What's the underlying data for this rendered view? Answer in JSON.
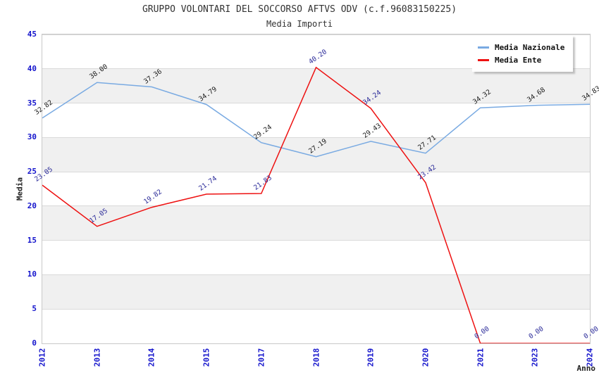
{
  "title": "GRUPPO VOLONTARI DEL SOCCORSO AFTVS ODV (c.f.96083150225)",
  "subtitle": "Media Importi",
  "axes": {
    "x_label": "Anno",
    "y_label": "Media",
    "y_ticks": [
      0,
      5,
      10,
      15,
      20,
      25,
      30,
      35,
      40,
      45
    ]
  },
  "colors": {
    "tick_text": "#1414cc",
    "band_gray": "#f0f0f0",
    "gridline": "#dadada",
    "plot_border": "#c9c9c9",
    "title_text": "#333333"
  },
  "chart_data": {
    "type": "line",
    "title": "GRUPPO VOLONTARI DEL SOCCORSO AFTVS ODV (c.f.96083150225)",
    "subtitle": "Media Importi",
    "xlabel": "Anno",
    "ylabel": "Media",
    "ylim": [
      0,
      45
    ],
    "y_tick_step": 5,
    "grid": "horizontal-bands-alternating",
    "legend_position": "top-right",
    "categories": [
      "2012",
      "2013",
      "2014",
      "2015",
      "2017",
      "2018",
      "2019",
      "2020",
      "2021",
      "2023",
      "2024"
    ],
    "series": [
      {
        "name": "Media Nazionale",
        "color": "#79aae2",
        "label_color": "#1a1a1a",
        "values": [
          32.82,
          38.0,
          37.36,
          34.79,
          29.24,
          27.19,
          29.43,
          27.71,
          34.32,
          34.68,
          34.83
        ]
      },
      {
        "name": "Media Ente",
        "color": "#ee1111",
        "label_color": "#2a2a99",
        "values": [
          23.05,
          17.05,
          19.82,
          21.74,
          21.83,
          40.2,
          34.24,
          23.42,
          0.0,
          0.0,
          0.0
        ]
      }
    ]
  }
}
